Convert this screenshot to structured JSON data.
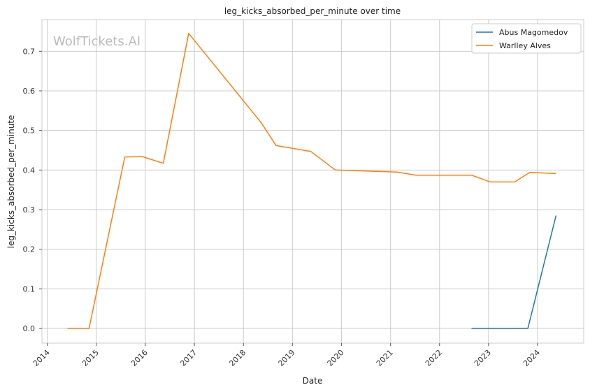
{
  "chart_data": {
    "type": "line",
    "title": "leg_kicks_absorbed_per_minute over time",
    "xlabel": "Date",
    "ylabel": "leg_kicks_absorbed_per_minute",
    "watermark": "WolfTickets.AI",
    "x_range": [
      "2013-11-22",
      "2024-12-10"
    ],
    "ylim": [
      -0.037,
      0.78
    ],
    "x_ticks": [
      "2014",
      "2015",
      "2016",
      "2017",
      "2018",
      "2019",
      "2020",
      "2021",
      "2022",
      "2023",
      "2024"
    ],
    "y_ticks": [
      "0.0",
      "0.1",
      "0.2",
      "0.3",
      "0.4",
      "0.5",
      "0.6",
      "0.7"
    ],
    "grid": true,
    "legend_position": "top-right",
    "series": [
      {
        "name": "Abus Magomedov",
        "color": "#1f77b4",
        "points": [
          {
            "x": "2022-08-27",
            "y": 0.0
          },
          {
            "x": "2023-10-21",
            "y": 0.0
          },
          {
            "x": "2024-05-18",
            "y": 0.285
          }
        ]
      },
      {
        "name": "Warlley Alves",
        "color": "#ff7f0e",
        "points": [
          {
            "x": "2014-05-31",
            "y": 0.0
          },
          {
            "x": "2014-11-08",
            "y": 0.0
          },
          {
            "x": "2015-08-01",
            "y": 0.433
          },
          {
            "x": "2015-12-10",
            "y": 0.434
          },
          {
            "x": "2016-05-14",
            "y": 0.417
          },
          {
            "x": "2016-11-19",
            "y": 0.745
          },
          {
            "x": "2018-05-12",
            "y": 0.52
          },
          {
            "x": "2018-09-01",
            "y": 0.462
          },
          {
            "x": "2019-05-18",
            "y": 0.447
          },
          {
            "x": "2019-11-16",
            "y": 0.4
          },
          {
            "x": "2021-02-20",
            "y": 0.395
          },
          {
            "x": "2021-07-10",
            "y": 0.387
          },
          {
            "x": "2022-08-27",
            "y": 0.387
          },
          {
            "x": "2023-01-14",
            "y": 0.37
          },
          {
            "x": "2023-07-15",
            "y": 0.37
          },
          {
            "x": "2023-11-04",
            "y": 0.394
          },
          {
            "x": "2024-05-18",
            "y": 0.391
          }
        ]
      }
    ]
  }
}
